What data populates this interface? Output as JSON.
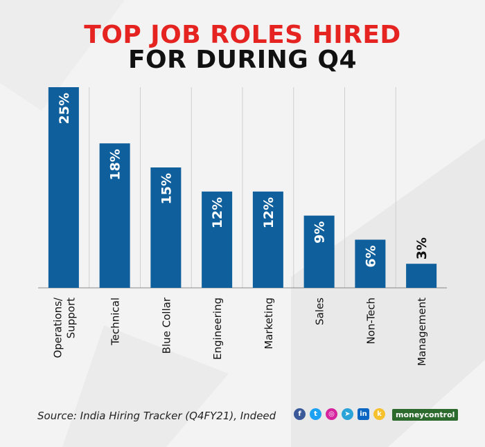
{
  "header": {
    "title_line1": "TOP JOB ROLES HIRED",
    "title_line2": "FOR DURING Q4"
  },
  "footer": {
    "source": "Source: India Hiring Tracker (Q4FY21), Indeed",
    "brand": "moneycontrol",
    "social_icons": [
      "facebook-icon",
      "twitter-icon",
      "instagram-icon",
      "telegram-icon",
      "linkedin-icon",
      "koo-icon"
    ]
  },
  "colors": {
    "bar": "#0e5f9b",
    "title_red": "#e52421",
    "title_black": "#111111",
    "grid": "#cfcfcf",
    "facebook": "#3b5998",
    "twitter": "#1da1f2",
    "instagram": "#d6249f",
    "telegram": "#2aa3d9",
    "linkedin": "#0a66c2",
    "koo": "#f6c12d",
    "brand": "#2d6a2d"
  },
  "chart_data": {
    "type": "bar",
    "categories": [
      "Operations/\nSupport",
      "Technical",
      "Blue Collar",
      "Engineering",
      "Marketing",
      "Sales",
      "Non-Tech",
      "Management"
    ],
    "values": [
      25,
      18,
      15,
      12,
      12,
      9,
      6,
      3
    ],
    "data_labels": [
      "25%",
      "18%",
      "15%",
      "12%",
      "12%",
      "9%",
      "6%",
      "3%"
    ],
    "ylim": [
      0,
      25
    ],
    "grid": true,
    "xlabel": "",
    "ylabel": ""
  }
}
